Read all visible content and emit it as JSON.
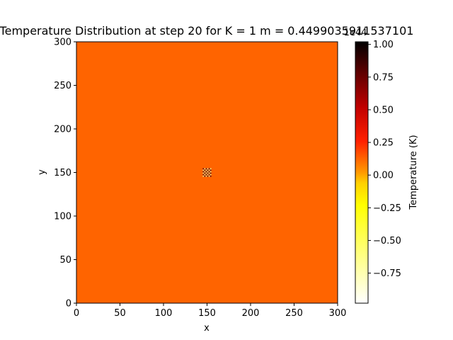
{
  "chart_data": {
    "type": "heatmap",
    "title": "Temperature Distribution at step 20 for K = 1 m = 0.4499035911537101",
    "xlabel": "x",
    "ylabel": "y",
    "xlim": [
      0,
      300
    ],
    "ylim": [
      0,
      300
    ],
    "x_ticks": [
      "0",
      "50",
      "100",
      "150",
      "200",
      "250",
      "300"
    ],
    "y_ticks": [
      "0",
      "50",
      "100",
      "150",
      "200",
      "250",
      "300"
    ],
    "background_value": 0.0,
    "hotspot": {
      "x": 150,
      "y": 150,
      "extent": 5,
      "pattern": "checkerboard",
      "values": [
        -1.0,
        1.0
      ]
    },
    "colorbar": {
      "label": "Temperature (K)",
      "multiplier_label": "1e44",
      "colormap": "hot_r",
      "range": [
        -0.98,
        1.02
      ],
      "ticks": [
        "−0.75",
        "−0.50",
        "−0.25",
        "0.00",
        "0.25",
        "0.50",
        "0.75",
        "1.00"
      ],
      "tick_values": [
        -0.75,
        -0.5,
        -0.25,
        0.0,
        0.25,
        0.5,
        0.75,
        1.0
      ]
    },
    "grid": false,
    "colors": {
      "field": "#ff6400",
      "hot": "#000000",
      "cold": "#ffffff"
    }
  }
}
